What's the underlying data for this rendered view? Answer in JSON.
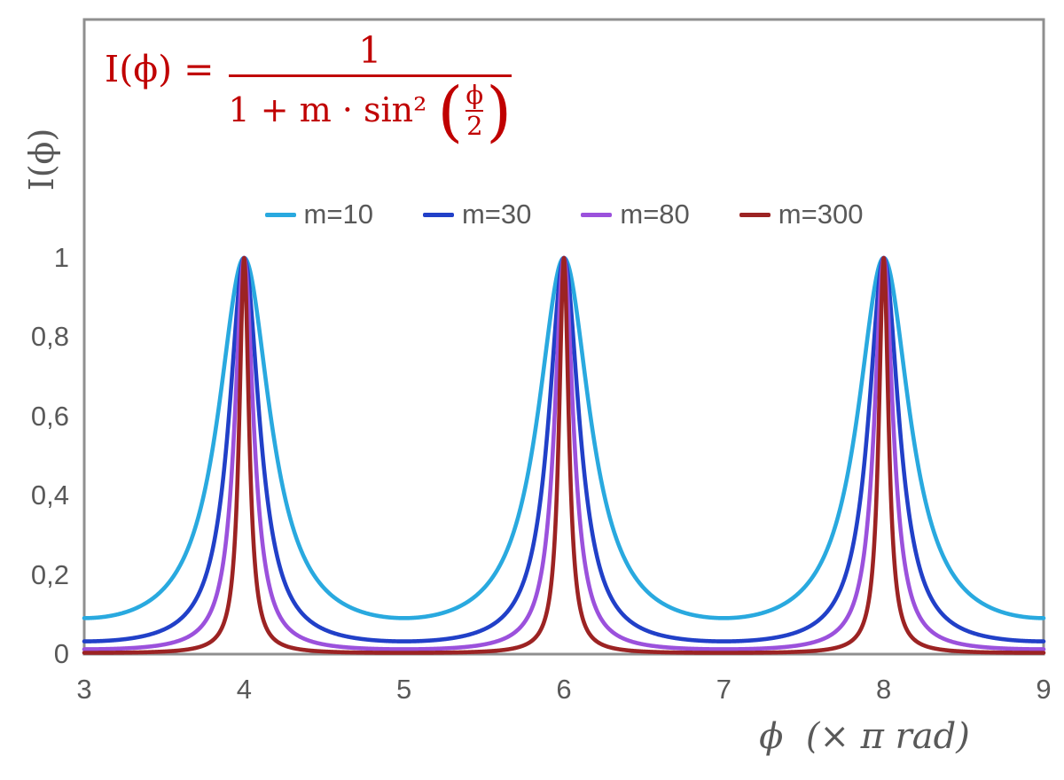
{
  "colors": {
    "background": "#FFFFFF",
    "formula_red": "#C00000",
    "text_gray": "#595959",
    "axis_gray": "#8F8F8F"
  },
  "formula": {
    "lhs": "I(ϕ) =",
    "numerator": "1",
    "denominator_prefix": "1 + m · sin² ",
    "open_paren": "(",
    "inner_numerator": "ϕ",
    "inner_denominator": "2",
    "close_paren": ")",
    "color": "#C00000",
    "plain_text": "I(ϕ) = 1 / (1 + m · sin²(ϕ/2))"
  },
  "chart_data": {
    "type": "line",
    "title": "",
    "xlabel": "ϕ  (× π rad)",
    "ylabel": "I(ϕ)",
    "grid": false,
    "legend_position": "top-center",
    "function_description": "Airy-type transmission I(x) = 1 / (1 + m · sin²(π·x/2)), x expressed in units of π rad; periodic peaks of height 1 at even x, minima of 1/(1+m) at odd x",
    "peaks_x": [
      4,
      6,
      8
    ],
    "x_axis": {
      "min": 3,
      "max": 9,
      "ticks": [
        {
          "label": "3",
          "value": 3
        },
        {
          "label": "4",
          "value": 4
        },
        {
          "label": "5",
          "value": 5
        },
        {
          "label": "6",
          "value": 6
        },
        {
          "label": "7",
          "value": 7
        },
        {
          "label": "8",
          "value": 8
        },
        {
          "label": "9",
          "value": 9
        }
      ]
    },
    "y_axis": {
      "min": 0,
      "max": 1,
      "ticks": [
        {
          "label": "1",
          "value": 1
        },
        {
          "label": "0,8",
          "value": 0.8
        },
        {
          "label": "0,6",
          "value": 0.6
        },
        {
          "label": "0,4",
          "value": 0.4
        },
        {
          "label": "0,2",
          "value": 0.2
        },
        {
          "label": "0",
          "value": 0
        }
      ]
    },
    "series": [
      {
        "name": "m=10",
        "m": 10,
        "color": "#29A9DF",
        "peak_value": 1,
        "min_value": 0.0909
      },
      {
        "name": "m=30",
        "m": 30,
        "color": "#2140C8",
        "peak_value": 1,
        "min_value": 0.0323
      },
      {
        "name": "m=80",
        "m": 80,
        "color": "#9B51DC",
        "peak_value": 1,
        "min_value": 0.0123
      },
      {
        "name": "m=300",
        "m": 300,
        "color": "#9C2323",
        "peak_value": 1,
        "min_value": 0.0033
      }
    ]
  }
}
